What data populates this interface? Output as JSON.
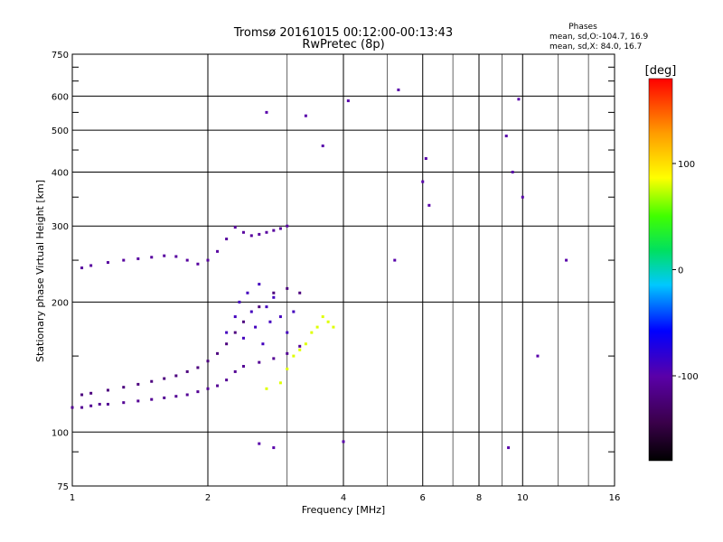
{
  "chart_data": {
    "type": "scatter",
    "title": "Tromsø 20161015 00:12:00-00:13:43",
    "subtitle": "RwPretec (8p)",
    "xlabel": "Frequency [MHz]",
    "ylabel": "Stationary phase Virtual Height [km]",
    "xscale": "log",
    "yscale": "log",
    "xlim": [
      1,
      16
    ],
    "ylim": [
      75,
      750
    ],
    "x_ticks": [
      1,
      2,
      4,
      6,
      8,
      10,
      16
    ],
    "y_ticks": [
      75,
      100,
      200,
      300,
      400,
      500,
      600,
      750
    ],
    "x_minor_ticks": [
      3,
      5,
      7,
      9,
      12,
      14
    ],
    "y_minor_ticks": [
      90,
      150,
      250,
      350,
      450,
      550,
      650,
      700
    ],
    "grid": true,
    "phases": {
      "heading": "Phases",
      "line_o": "mean, sd,O:-104.7, 16.9",
      "line_x": "mean, sd,X:  84.0, 16.7"
    },
    "colorbar": {
      "label": "[deg]",
      "range": [
        -180,
        180
      ],
      "ticks": [
        100,
        0,
        -100
      ],
      "colormap": "rainbow (black → purple → blue → cyan → green → yellow → orange → red)"
    },
    "series": [
      {
        "trace": "o-mode E/F lower trace",
        "color_phase": -110,
        "x": [
          1.0,
          1.05,
          1.1,
          1.15,
          1.2,
          1.3,
          1.4,
          1.5,
          1.6,
          1.7,
          1.8,
          1.9,
          2.0,
          2.1,
          2.2,
          2.3,
          2.4,
          2.6,
          2.8,
          3.0,
          3.2
        ],
        "y": [
          114,
          114,
          115,
          116,
          116,
          117,
          118,
          119,
          120,
          121,
          122,
          124,
          126,
          128,
          132,
          138,
          142,
          145,
          148,
          152,
          158
        ]
      },
      {
        "trace": "o-mode second-hop trace",
        "color_phase": -120,
        "x": [
          1.05,
          1.1,
          1.2,
          1.3,
          1.4,
          1.5,
          1.6,
          1.7,
          1.8,
          1.9,
          2.0,
          2.1,
          2.2,
          2.3,
          2.4,
          2.6,
          2.8,
          3.0,
          3.2
        ],
        "y": [
          122,
          123,
          125,
          127,
          129,
          131,
          133,
          135,
          138,
          141,
          146,
          152,
          160,
          170,
          180,
          195,
          210,
          215,
          210
        ]
      },
      {
        "trace": "spread F cluster",
        "color_phase": -90,
        "x": [
          2.2,
          2.3,
          2.35,
          2.4,
          2.45,
          2.5,
          2.55,
          2.6,
          2.65,
          2.7,
          2.75,
          2.8,
          2.9,
          3.0,
          3.1
        ],
        "y": [
          170,
          185,
          200,
          165,
          210,
          190,
          175,
          220,
          160,
          195,
          180,
          205,
          185,
          170,
          190
        ]
      },
      {
        "trace": "x-mode cluster",
        "color_phase": 80,
        "x": [
          2.7,
          2.9,
          3.0,
          3.1,
          3.2,
          3.3,
          3.4,
          3.5,
          3.6,
          3.7,
          3.8
        ],
        "y": [
          126,
          130,
          140,
          150,
          155,
          160,
          170,
          175,
          185,
          180,
          175
        ]
      },
      {
        "trace": "upper F2 trace",
        "color_phase": -105,
        "x": [
          1.05,
          1.1,
          1.2,
          1.3,
          1.4,
          1.5,
          1.6,
          1.7,
          1.8,
          1.9,
          2.0,
          2.1,
          2.2,
          2.3,
          2.4,
          2.5,
          2.6,
          2.7,
          2.8,
          2.9,
          3.0
        ],
        "y": [
          240,
          243,
          247,
          250,
          252,
          254,
          256,
          255,
          250,
          245,
          250,
          262,
          280,
          298,
          290,
          285,
          287,
          290,
          293,
          296,
          300
        ]
      },
      {
        "trace": "scattered outliers",
        "color_phase": -100,
        "x": [
          2.7,
          3.3,
          3.6,
          4.1,
          5.3,
          6.0,
          6.1,
          6.2,
          9.2,
          9.8,
          9.5,
          10.0,
          12.5,
          10.8,
          4.0,
          5.2,
          9.3,
          2.6,
          2.8
        ],
        "y": [
          550,
          540,
          460,
          585,
          620,
          380,
          430,
          335,
          485,
          590,
          400,
          350,
          250,
          150,
          95,
          250,
          92,
          94,
          92
        ]
      }
    ]
  }
}
